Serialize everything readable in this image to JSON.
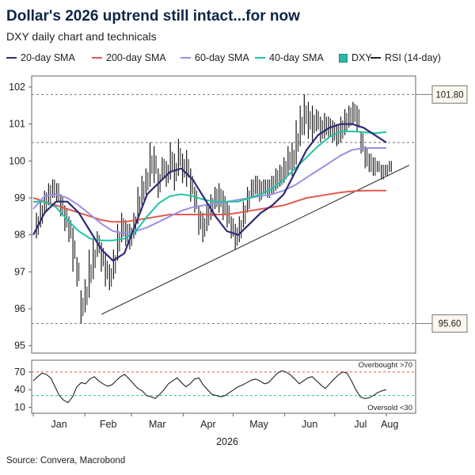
{
  "title": "Dollar's 2026 uptrend still intact...for now",
  "subtitle": "DXY daily chart and technicals",
  "source": "Source: Convera, Macrobond",
  "legend": [
    {
      "label": "20-day SMA",
      "color": "#2e2a78",
      "kind": "line"
    },
    {
      "label": "200-day SMA",
      "color": "#e05a4e",
      "kind": "line"
    },
    {
      "label": "60-day SMA",
      "color": "#9a90e0",
      "kind": "line"
    },
    {
      "label": "40-day SMA",
      "color": "#1fc4a4",
      "kind": "line"
    },
    {
      "label": "DXY",
      "color": "#2ab8a1",
      "kind": "box"
    },
    {
      "label": "RSI (14-day)",
      "color": "#222222",
      "kind": "line"
    }
  ],
  "chart_data": [
    {
      "type": "line",
      "panel": "price",
      "x_label": "2026",
      "x_ticks": [
        "Jan",
        "Feb",
        "Mar",
        "Apr",
        "May",
        "Jun",
        "Jul",
        "Aug"
      ],
      "y_ticks": [
        95,
        96,
        97,
        98,
        99,
        100,
        101,
        102
      ],
      "ylim": [
        94.8,
        102.3
      ],
      "reference_lines": [
        {
          "value": 101.8,
          "label": "101.80",
          "style": "dashed"
        },
        {
          "value": 95.6,
          "label": "95.60",
          "style": "dashed"
        },
        {
          "value": 100.5,
          "label": "",
          "style": "dashed"
        }
      ],
      "trendline": {
        "from": {
          "x": "Jan 23",
          "y": 95.85
        },
        "to": {
          "x": "Aug 1",
          "y": 99.8
        }
      },
      "dxy_daily_range_approx": [
        [
          97.9,
          98.6
        ],
        [
          98.2,
          98.9
        ],
        [
          98.6,
          99.2
        ],
        [
          98.8,
          99.4
        ],
        [
          99.0,
          99.5
        ],
        [
          98.9,
          99.4
        ],
        [
          98.5,
          99.1
        ],
        [
          98.1,
          98.8
        ],
        [
          97.8,
          98.5
        ],
        [
          97.0,
          98.2
        ],
        [
          96.6,
          97.4
        ],
        [
          95.6,
          96.5
        ],
        [
          95.9,
          96.8
        ],
        [
          96.3,
          97.6
        ],
        [
          96.8,
          97.9
        ],
        [
          97.4,
          98.1
        ],
        [
          97.0,
          97.8
        ],
        [
          96.6,
          97.5
        ],
        [
          96.5,
          97.2
        ],
        [
          96.8,
          97.6
        ],
        [
          97.3,
          98.3
        ],
        [
          97.8,
          98.6
        ],
        [
          97.7,
          98.4
        ],
        [
          97.6,
          98.3
        ],
        [
          97.9,
          98.6
        ],
        [
          98.3,
          99.3
        ],
        [
          98.8,
          99.6
        ],
        [
          99.1,
          99.8
        ],
        [
          99.3,
          100.5
        ],
        [
          99.4,
          100.4
        ],
        [
          99.0,
          99.8
        ],
        [
          99.5,
          100.1
        ],
        [
          99.3,
          100.0
        ],
        [
          99.5,
          100.5
        ],
        [
          99.2,
          100.2
        ],
        [
          99.6,
          100.6
        ],
        [
          99.4,
          100.2
        ],
        [
          99.3,
          100.3
        ],
        [
          98.9,
          99.8
        ],
        [
          98.6,
          99.3
        ],
        [
          98.0,
          98.8
        ],
        [
          97.8,
          98.6
        ],
        [
          98.1,
          98.9
        ],
        [
          98.4,
          99.1
        ],
        [
          98.7,
          99.3
        ],
        [
          98.6,
          99.4
        ],
        [
          98.4,
          99.2
        ],
        [
          98.2,
          98.9
        ],
        [
          97.9,
          98.5
        ],
        [
          97.6,
          98.3
        ],
        [
          97.8,
          98.5
        ],
        [
          98.2,
          98.9
        ],
        [
          98.6,
          99.3
        ],
        [
          99.0,
          99.5
        ],
        [
          99.1,
          99.6
        ],
        [
          98.9,
          99.5
        ],
        [
          99.1,
          99.5
        ],
        [
          99.0,
          99.5
        ],
        [
          99.1,
          99.6
        ],
        [
          99.2,
          99.8
        ],
        [
          99.3,
          99.9
        ],
        [
          99.4,
          100.1
        ],
        [
          99.6,
          100.4
        ],
        [
          99.6,
          100.5
        ],
        [
          99.9,
          101.1
        ],
        [
          100.4,
          101.5
        ],
        [
          100.7,
          101.8
        ],
        [
          100.6,
          101.6
        ],
        [
          100.5,
          101.5
        ],
        [
          100.8,
          101.4
        ],
        [
          100.5,
          101.2
        ],
        [
          100.6,
          101.3
        ],
        [
          100.6,
          101.2
        ],
        [
          100.5,
          101.1
        ],
        [
          100.4,
          101.0
        ],
        [
          100.5,
          101.2
        ],
        [
          100.7,
          101.4
        ],
        [
          100.9,
          101.5
        ],
        [
          101.0,
          101.6
        ],
        [
          100.8,
          101.5
        ],
        [
          100.2,
          100.8
        ],
        [
          99.8,
          100.4
        ],
        [
          99.7,
          100.2
        ],
        [
          99.6,
          100.1
        ],
        [
          99.7,
          100.0
        ],
        [
          99.5,
          99.9
        ],
        [
          99.6,
          99.9
        ],
        [
          99.7,
          100.0
        ]
      ],
      "series": [
        {
          "name": "20-day SMA",
          "color": "#2e2a78",
          "values_approx": [
            98.0,
            98.6,
            98.9,
            98.9,
            98.6,
            98.1,
            97.6,
            97.3,
            97.5,
            98.3,
            99.1,
            99.4,
            99.7,
            99.8,
            99.5,
            99.0,
            98.5,
            98.1,
            98.0,
            98.3,
            98.6,
            98.8,
            99.1,
            99.7,
            100.3,
            100.7,
            100.9,
            101.0,
            101.0,
            100.9,
            100.7,
            100.5
          ]
        },
        {
          "name": "200-day SMA",
          "color": "#e05a4e",
          "values_approx": [
            99.0,
            98.9,
            98.8,
            98.7,
            98.6,
            98.5,
            98.4,
            98.35,
            98.35,
            98.4,
            98.45,
            98.5,
            98.55,
            98.55,
            98.55,
            98.55,
            98.55,
            98.55,
            98.6,
            98.65,
            98.7,
            98.75,
            98.8,
            98.9,
            99.0,
            99.05,
            99.1,
            99.15,
            99.18,
            99.2,
            99.2,
            99.2
          ]
        },
        {
          "name": "60-day SMA",
          "color": "#9a90e0",
          "values_approx": [
            98.7,
            99.05,
            99.1,
            99.0,
            98.8,
            98.55,
            98.3,
            98.1,
            98.05,
            98.1,
            98.2,
            98.35,
            98.5,
            98.65,
            98.75,
            98.8,
            98.85,
            98.9,
            98.95,
            99.0,
            99.05,
            99.1,
            99.2,
            99.35,
            99.55,
            99.75,
            99.95,
            100.15,
            100.3,
            100.35,
            100.35,
            100.35
          ]
        },
        {
          "name": "40-day SMA",
          "color": "#1fc4a4",
          "values_approx": [
            98.9,
            98.9,
            98.75,
            98.4,
            98.1,
            97.9,
            97.85,
            97.85,
            97.9,
            98.1,
            98.5,
            98.85,
            99.05,
            99.1,
            99.05,
            98.95,
            98.9,
            98.9,
            98.9,
            99.0,
            99.1,
            99.25,
            99.5,
            99.8,
            100.1,
            100.4,
            100.65,
            100.8,
            100.8,
            100.78,
            100.75,
            100.78
          ]
        }
      ]
    },
    {
      "type": "line",
      "panel": "rsi",
      "y_ticks": [
        10,
        40,
        70
      ],
      "ylim": [
        0,
        90
      ],
      "reference_lines": [
        {
          "value": 70,
          "label": "Overbought >70",
          "color": "#e05a4e"
        },
        {
          "value": 30,
          "label": "Oversold <30",
          "color": "#1fc4a4"
        }
      ],
      "series": [
        {
          "name": "RSI (14-day)",
          "color": "#222222",
          "values_approx": [
            55,
            62,
            68,
            66,
            60,
            45,
            30,
            22,
            18,
            28,
            45,
            52,
            50,
            58,
            62,
            55,
            50,
            46,
            48,
            55,
            62,
            66,
            58,
            50,
            42,
            38,
            30,
            28,
            25,
            32,
            40,
            50,
            55,
            60,
            52,
            45,
            50,
            58,
            60,
            48,
            40,
            32,
            30,
            28,
            30,
            35,
            40,
            45,
            48,
            52,
            56,
            58,
            55,
            50,
            52,
            60,
            68,
            72,
            70,
            65,
            58,
            50,
            55,
            60,
            62,
            55,
            48,
            42,
            50,
            58,
            65,
            70,
            68,
            55,
            40,
            28,
            25,
            26,
            30,
            35,
            38,
            40
          ]
        }
      ]
    }
  ]
}
